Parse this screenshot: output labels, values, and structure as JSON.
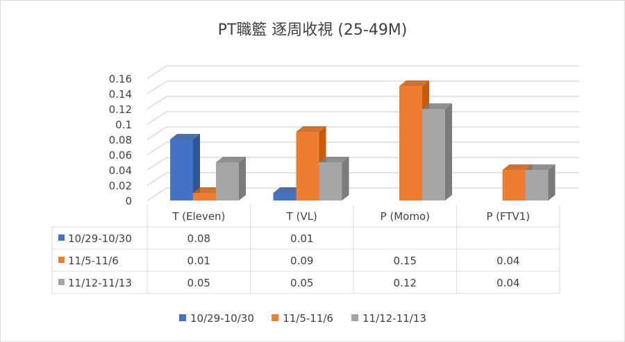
{
  "chart_data": {
    "type": "bar",
    "title": "PT職籃 逐周收視 (25-49M)",
    "categories": [
      "T (Eleven)",
      "T (VL)",
      "P (Momo)",
      "P (FTV1)"
    ],
    "series": [
      {
        "name": "10/29-10/30",
        "color": "#4472c4",
        "side": "#2f5597",
        "values": [
          0.08,
          0.01,
          null,
          null
        ]
      },
      {
        "name": "11/5-11/6",
        "color": "#ed7d31",
        "side": "#c55a11",
        "values": [
          0.01,
          0.09,
          0.15,
          0.04
        ]
      },
      {
        "name": "11/12-11/13",
        "color": "#a5a5a5",
        "side": "#7b7b7b",
        "values": [
          0.05,
          0.05,
          0.12,
          0.04
        ]
      }
    ],
    "yticks": [
      "0",
      "0.02",
      "0.04",
      "0.06",
      "0.08",
      "0.1",
      "0.12",
      "0.14",
      "0.16"
    ],
    "ylim": [
      0,
      0.16
    ],
    "grid": true,
    "legend": "bottom",
    "data_table": true
  }
}
